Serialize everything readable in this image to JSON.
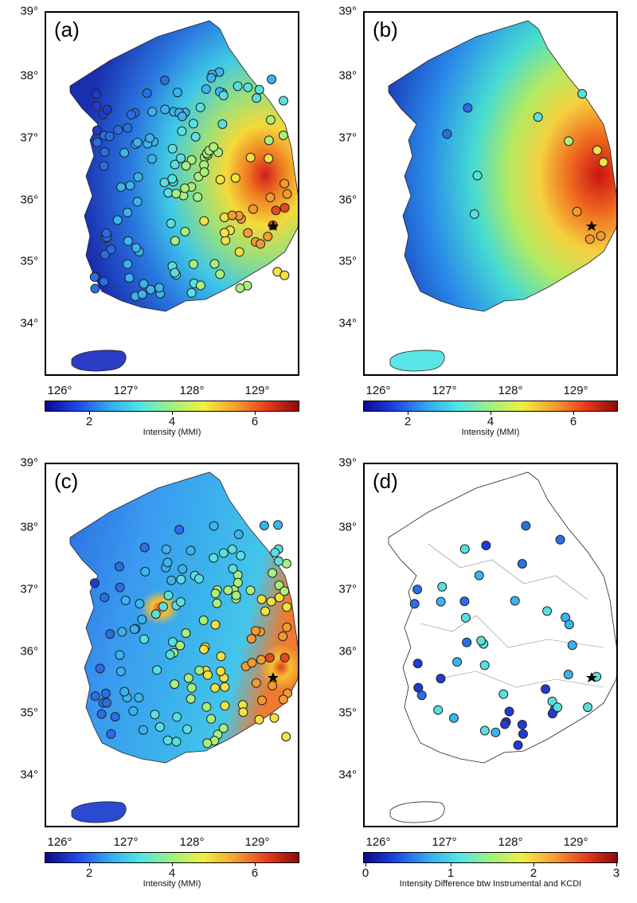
{
  "panels": [
    {
      "label": "(a)",
      "colorbar_title": "Intensity (MMI)",
      "colorbar_ticks": [
        "2",
        "4",
        "6"
      ]
    },
    {
      "label": "(b)",
      "colorbar_title": "Intensity (MMI)",
      "colorbar_ticks": [
        "2",
        "4",
        "6"
      ]
    },
    {
      "label": "(c)",
      "colorbar_title": "Intensity (MMI)",
      "colorbar_ticks": [
        "2",
        "4",
        "6"
      ]
    },
    {
      "label": "(d)",
      "colorbar_title": "Intensity Difference btw Instrumental and KCDI",
      "colorbar_ticks": [
        "0",
        "1",
        "2",
        "3"
      ]
    }
  ],
  "lat_labels": [
    "39°",
    "38°",
    "37°",
    "36°",
    "35°",
    "34°"
  ],
  "lon_labels": [
    "126°",
    "127°",
    "128°",
    "129°"
  ],
  "epicenter": {
    "lon": 129.19,
    "lat": 35.77,
    "marker": "star"
  },
  "colors": {
    "low": "#1a1aa8",
    "mid": "#3fd6e0",
    "high": "#c81e1e"
  }
}
